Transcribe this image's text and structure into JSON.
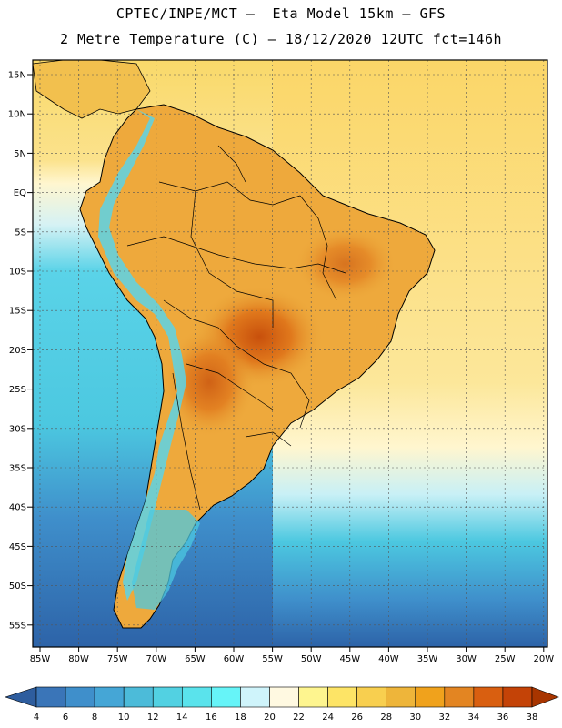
{
  "header": {
    "title_line1": "CPTEC/INPE/MCT –  Eta Model 15km – GFS",
    "title_line2": "2 Metre Temperature (C) – 18/12/2020 12UTC fct=146h"
  },
  "axes": {
    "lat_labels": [
      "15N",
      "10N",
      "5N",
      "EQ",
      "5S",
      "10S",
      "15S",
      "20S",
      "25S",
      "30S",
      "35S",
      "40S",
      "45S",
      "50S",
      "55S"
    ],
    "lon_labels": [
      "85W",
      "80W",
      "75W",
      "70W",
      "65W",
      "60W",
      "55W",
      "50W",
      "45W",
      "40W",
      "35W",
      "30W",
      "25W",
      "20W"
    ]
  },
  "colorbar": {
    "labels": [
      "4",
      "6",
      "8",
      "10",
      "12",
      "14",
      "16",
      "18",
      "20",
      "22",
      "24",
      "26",
      "28",
      "30",
      "32",
      "34",
      "36",
      "38"
    ],
    "colors": [
      "#2e5d9e",
      "#3a75b8",
      "#3f8fcb",
      "#45a6d6",
      "#4cbbd9",
      "#52d1e2",
      "#5ae3ec",
      "#66f4f8",
      "#cff4fb",
      "#fff9e1",
      "#fef58f",
      "#fde466",
      "#f8cf4f",
      "#eeb53a",
      "#f0a21c",
      "#e38522",
      "#d95f10",
      "#c44307",
      "#a83500"
    ]
  },
  "colors": {
    "land_dark": "#e9a538",
    "land_mid": "#f4c552",
    "land_hot": "#e0781c",
    "ocean_warm": "#fbe58a",
    "ocean_pale": "#fff6cf",
    "ocean_cool": "#4cc8e0",
    "ocean_cold": "#2d63a8",
    "andes": "#5ad3e8"
  }
}
